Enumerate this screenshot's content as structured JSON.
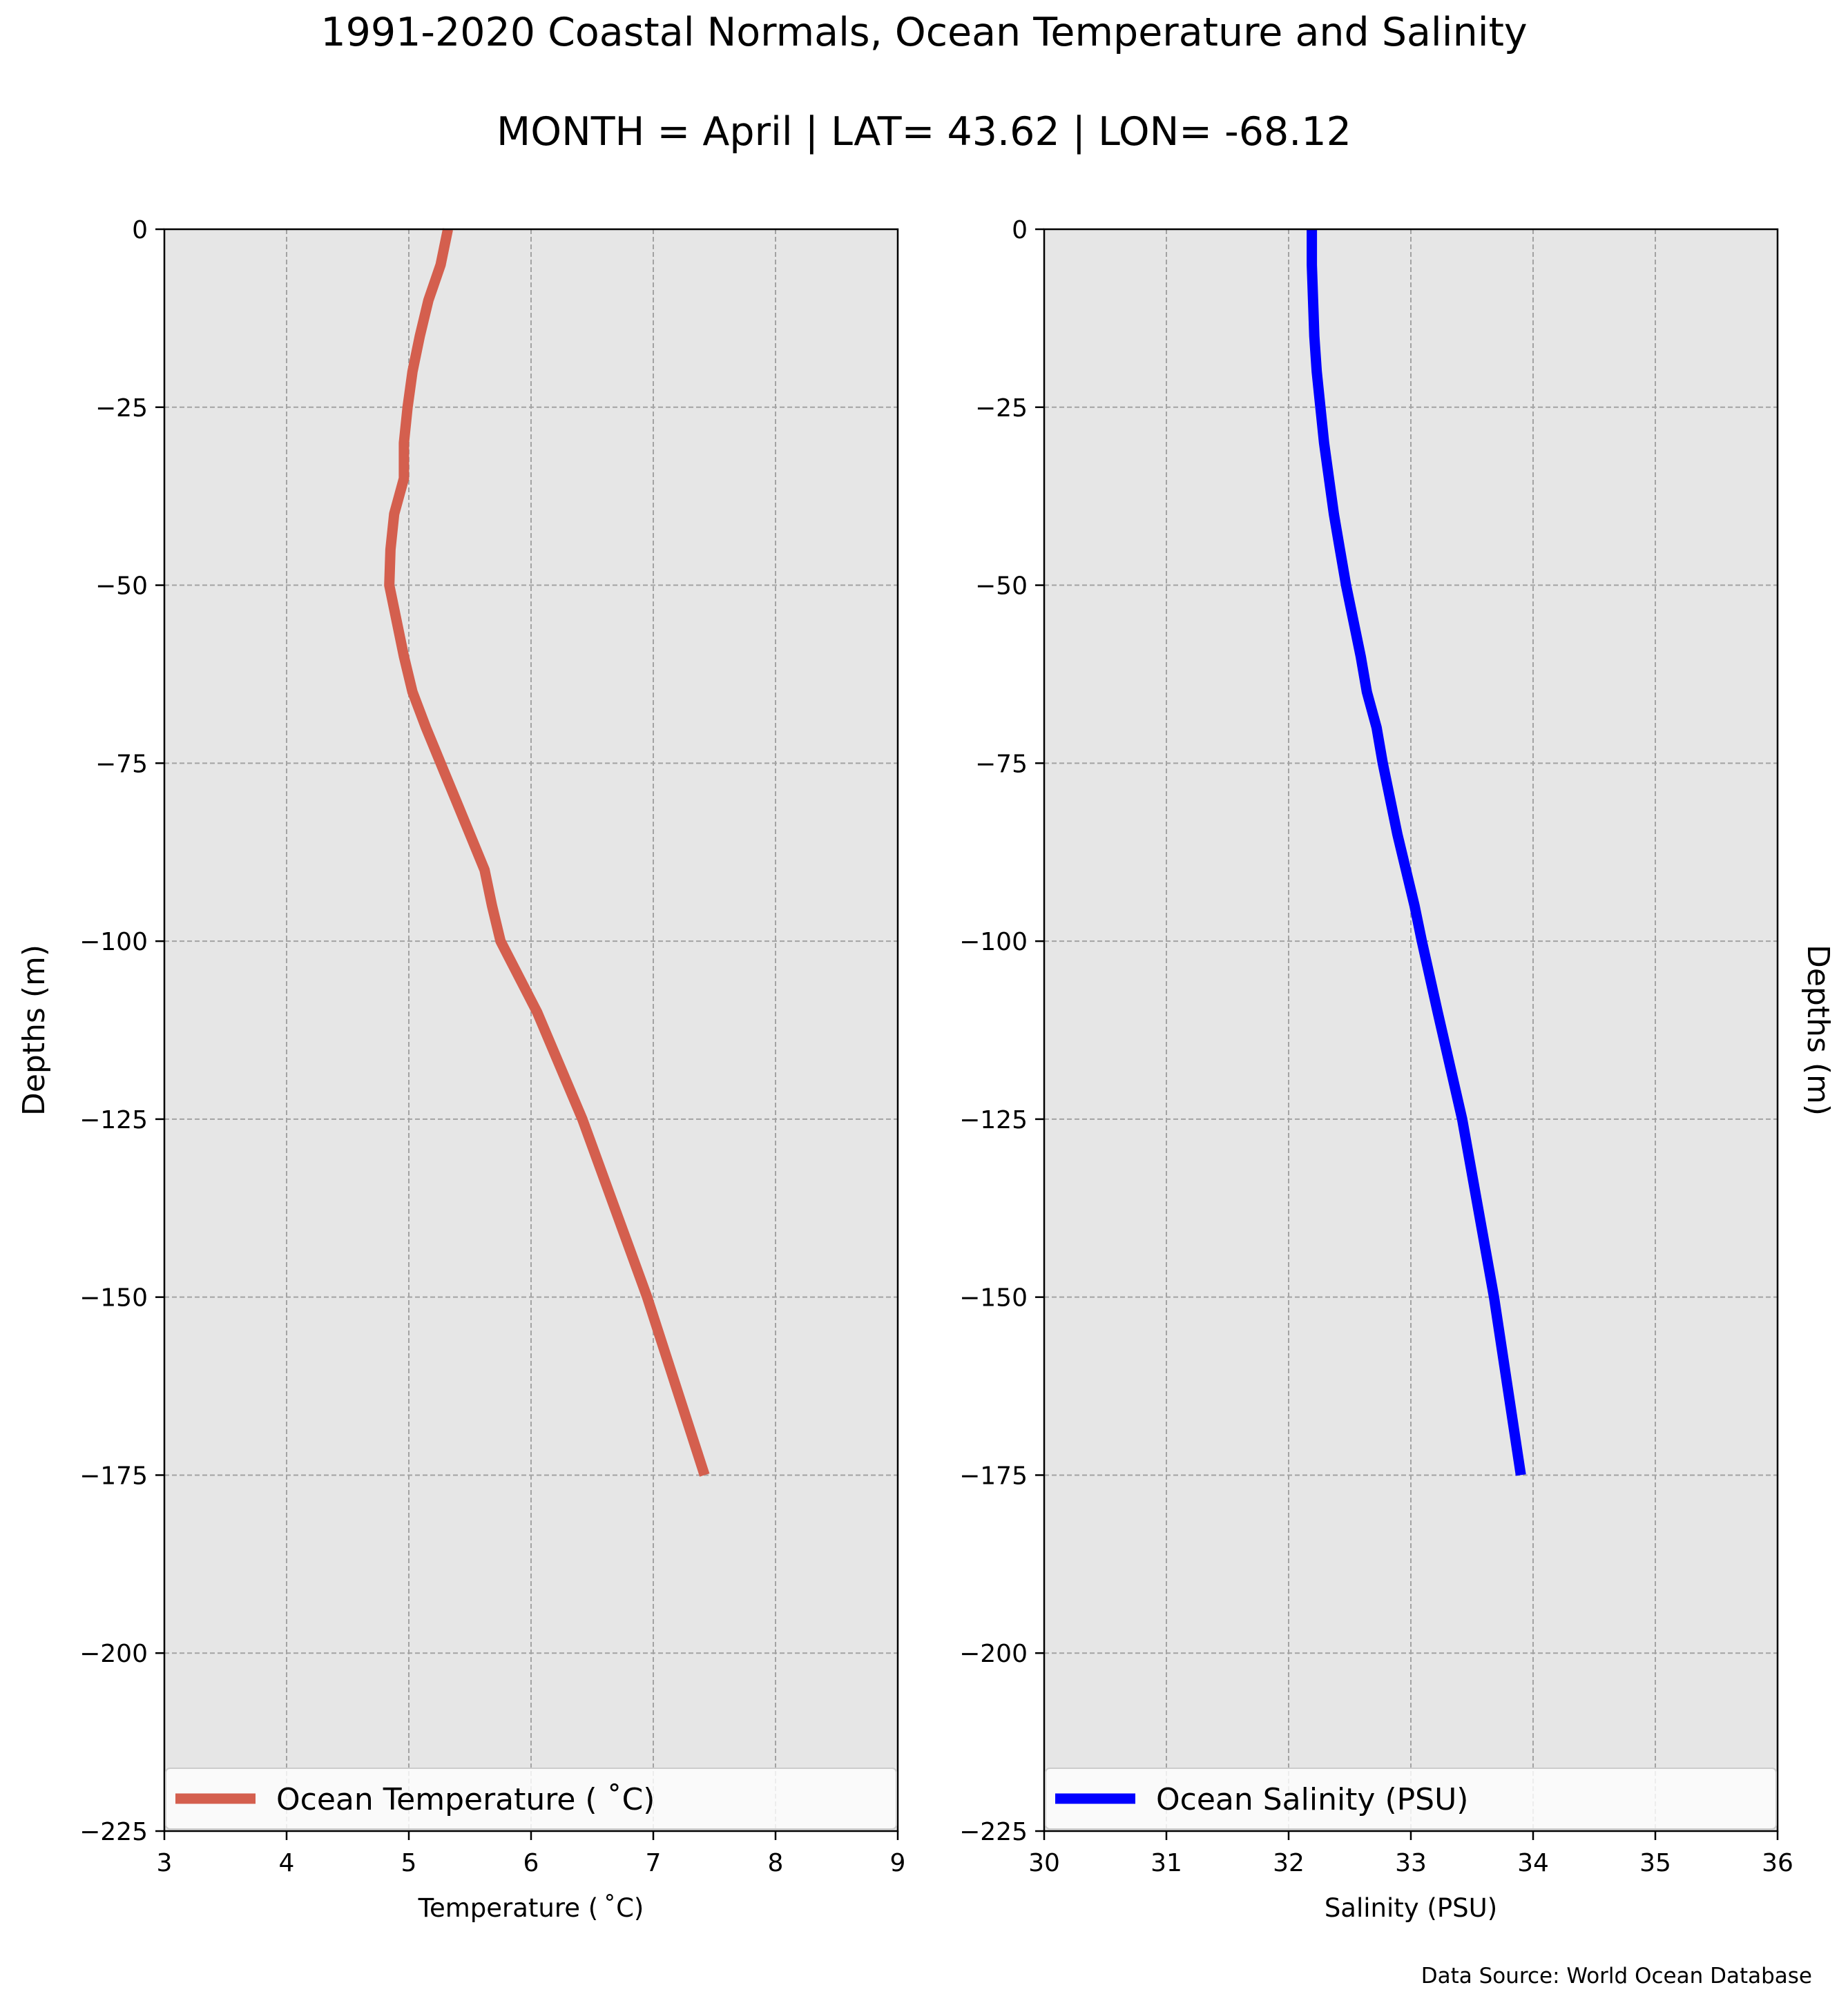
{
  "figure": {
    "title": "1991-2020 Coastal Normals, Ocean Temperature and Salinity",
    "subtitle": "MONTH = April | LAT= 43.62 | LON= -68.12",
    "source_note": "Data Source: World Ocean Database"
  },
  "chart_data": [
    {
      "type": "line",
      "xlabel": "Temperature ($^\\circ$C)",
      "xlabel_display": "Temperature ( ˚C)",
      "ylabel": "Depths (m)",
      "ylabel_side": "left",
      "xlim": [
        3,
        9
      ],
      "ylim": [
        -225,
        0
      ],
      "xticks": [
        3,
        4,
        5,
        6,
        7,
        8,
        9
      ],
      "yticks": [
        0,
        -25,
        -50,
        -75,
        -100,
        -125,
        -150,
        -175,
        -200,
        -225
      ],
      "grid": true,
      "legend_position": "lower center",
      "series": [
        {
          "name": "Ocean Temperature ( ˚C)",
          "color": "#d45f4e",
          "points": [
            [
              5.32,
              0
            ],
            [
              5.26,
              -5
            ],
            [
              5.16,
              -10
            ],
            [
              5.09,
              -15
            ],
            [
              5.03,
              -20
            ],
            [
              4.99,
              -25
            ],
            [
              4.96,
              -30
            ],
            [
              4.96,
              -35
            ],
            [
              4.88,
              -40
            ],
            [
              4.85,
              -45
            ],
            [
              4.84,
              -50
            ],
            [
              4.9,
              -55
            ],
            [
              4.96,
              -60
            ],
            [
              5.03,
              -65
            ],
            [
              5.14,
              -70
            ],
            [
              5.26,
              -75
            ],
            [
              5.38,
              -80
            ],
            [
              5.5,
              -85
            ],
            [
              5.62,
              -90
            ],
            [
              5.68,
              -95
            ],
            [
              5.75,
              -100
            ],
            [
              6.05,
              -110
            ],
            [
              6.42,
              -125
            ],
            [
              6.95,
              -150
            ],
            [
              7.42,
              -175
            ]
          ]
        }
      ]
    },
    {
      "type": "line",
      "xlabel": "Salinity (PSU)",
      "ylabel": "Depths (m)",
      "ylabel_side": "right",
      "xlim": [
        30,
        36
      ],
      "ylim": [
        -225,
        0
      ],
      "xticks": [
        30,
        31,
        32,
        33,
        34,
        35,
        36
      ],
      "yticks": [
        0,
        -25,
        -50,
        -75,
        -100,
        -125,
        -150,
        -175,
        -200,
        -225
      ],
      "grid": true,
      "legend_position": "lower center",
      "series": [
        {
          "name": "Ocean Salinity (PSU)",
          "color": "#0000ff",
          "points": [
            [
              32.19,
              0
            ],
            [
              32.19,
              -5
            ],
            [
              32.2,
              -10
            ],
            [
              32.21,
              -15
            ],
            [
              32.23,
              -20
            ],
            [
              32.26,
              -25
            ],
            [
              32.29,
              -30
            ],
            [
              32.33,
              -35
            ],
            [
              32.37,
              -40
            ],
            [
              32.42,
              -45
            ],
            [
              32.47,
              -50
            ],
            [
              32.53,
              -55
            ],
            [
              32.59,
              -60
            ],
            [
              32.64,
              -65
            ],
            [
              32.72,
              -70
            ],
            [
              32.77,
              -75
            ],
            [
              32.83,
              -80
            ],
            [
              32.89,
              -85
            ],
            [
              32.96,
              -90
            ],
            [
              33.03,
              -95
            ],
            [
              33.09,
              -100
            ],
            [
              33.22,
              -110
            ],
            [
              33.42,
              -125
            ],
            [
              33.68,
              -150
            ],
            [
              33.9,
              -175
            ]
          ]
        }
      ]
    }
  ]
}
